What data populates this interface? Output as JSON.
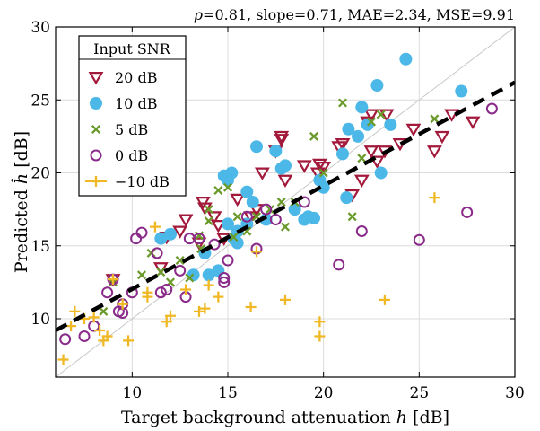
{
  "chart_data": {
    "type": "scatter",
    "title_parts": {
      "rho_symbol": "ρ",
      "rest": "=0.81, slope=0.71, MAE=2.34, MSE=9.91"
    },
    "xlabel": {
      "text": "Target background attenuation ",
      "var": "h",
      "unit": " [dB]"
    },
    "ylabel": {
      "text": "Predicted ",
      "var": "ĥ",
      "unit": " [dB]"
    },
    "xlim": [
      6,
      30
    ],
    "ylim": [
      6,
      30
    ],
    "xticks": [
      10,
      15,
      20,
      25,
      30
    ],
    "yticks": [
      10,
      15,
      20,
      25,
      30
    ],
    "grid": true,
    "legend": {
      "title": "Input SNR",
      "placement": "top-left"
    },
    "identity_line": {
      "from": [
        6,
        6
      ],
      "to": [
        30,
        30
      ],
      "color": "#c8c8c8"
    },
    "fit_line": {
      "from": [
        6,
        9.2
      ],
      "to": [
        30,
        26.2
      ],
      "color": "#000000",
      "style": "dashed"
    },
    "series": [
      {
        "name": "20 dB",
        "marker": "triangle-down",
        "color": "#a3193b",
        "points": [
          [
            9.0,
            12.7
          ],
          [
            11.5,
            13.5
          ],
          [
            11.8,
            15.6
          ],
          [
            12.5,
            16.0
          ],
          [
            12.8,
            16.8
          ],
          [
            13.5,
            15.2
          ],
          [
            13.7,
            18.0
          ],
          [
            13.8,
            17.6
          ],
          [
            14.3,
            17.0
          ],
          [
            14.5,
            16.4
          ],
          [
            14.8,
            15.5
          ],
          [
            15.5,
            16.0
          ],
          [
            15.5,
            18.2
          ],
          [
            16.2,
            17.0
          ],
          [
            16.5,
            17.5
          ],
          [
            16.8,
            20.0
          ],
          [
            17.5,
            21.5
          ],
          [
            17.8,
            22.5
          ],
          [
            18.0,
            19.5
          ],
          [
            19.0,
            20.5
          ],
          [
            19.8,
            20.6
          ],
          [
            20.0,
            20.4
          ],
          [
            20.8,
            21.8
          ],
          [
            21.0,
            22.0
          ],
          [
            21.5,
            18.5
          ],
          [
            22.0,
            19.5
          ],
          [
            22.3,
            23.5
          ],
          [
            22.5,
            24.0
          ],
          [
            22.5,
            21.5
          ],
          [
            23.3,
            24.0
          ],
          [
            23.2,
            21.5
          ],
          [
            24.0,
            22.0
          ],
          [
            24.7,
            23.0
          ],
          [
            25.8,
            21.5
          ],
          [
            26.2,
            22.5
          ],
          [
            26.7,
            24.0
          ],
          [
            27.8,
            23.5
          ],
          [
            19.7,
            20.0
          ],
          [
            17.8,
            22.3
          ],
          [
            22.8,
            20.8
          ]
        ]
      },
      {
        "name": "10 dB",
        "marker": "circle-filled",
        "color": "#4cb8e8",
        "points": [
          [
            11.5,
            15.5
          ],
          [
            12.0,
            15.8
          ],
          [
            13.2,
            13.0
          ],
          [
            13.8,
            14.5
          ],
          [
            14.0,
            13.0
          ],
          [
            14.5,
            13.3
          ],
          [
            14.8,
            19.8
          ],
          [
            15.0,
            16.5
          ],
          [
            15.0,
            19.5
          ],
          [
            15.2,
            20.0
          ],
          [
            15.3,
            15.5
          ],
          [
            15.5,
            15.2
          ],
          [
            15.5,
            16.0
          ],
          [
            16.0,
            16.5
          ],
          [
            16.0,
            18.7
          ],
          [
            16.3,
            18.0
          ],
          [
            16.5,
            21.8
          ],
          [
            17.0,
            16.8
          ],
          [
            17.5,
            21.5
          ],
          [
            17.8,
            20.3
          ],
          [
            18.0,
            20.5
          ],
          [
            18.5,
            17.5
          ],
          [
            19.0,
            16.8
          ],
          [
            19.5,
            16.9
          ],
          [
            19.8,
            19.5
          ],
          [
            20.0,
            19.0
          ],
          [
            21.0,
            21.3
          ],
          [
            21.2,
            18.3
          ],
          [
            21.3,
            23.0
          ],
          [
            21.8,
            22.5
          ],
          [
            22.0,
            24.5
          ],
          [
            22.3,
            23.3
          ],
          [
            22.8,
            26.0
          ],
          [
            23.0,
            20.0
          ],
          [
            23.5,
            23.3
          ],
          [
            24.3,
            27.8
          ],
          [
            27.2,
            25.6
          ],
          [
            19.2,
            17.0
          ]
        ]
      },
      {
        "name": "5 dB",
        "marker": "x-cross",
        "color": "#6a9a2a",
        "points": [
          [
            8.5,
            10.5
          ],
          [
            9.0,
            12.5
          ],
          [
            10.5,
            13.0
          ],
          [
            11.0,
            14.5
          ],
          [
            11.5,
            13.2
          ],
          [
            12.0,
            12.5
          ],
          [
            12.5,
            14.0
          ],
          [
            13.0,
            12.8
          ],
          [
            13.5,
            15.7
          ],
          [
            14.0,
            16.7
          ],
          [
            14.5,
            18.8
          ],
          [
            15.0,
            19.0
          ],
          [
            15.5,
            17.0
          ],
          [
            16.0,
            16.0
          ],
          [
            16.5,
            17.0
          ],
          [
            17.2,
            17.5
          ],
          [
            17.8,
            18.0
          ],
          [
            18.0,
            16.3
          ],
          [
            18.5,
            18.0
          ],
          [
            19.5,
            22.5
          ],
          [
            20.0,
            20.0
          ],
          [
            21.0,
            24.8
          ],
          [
            21.5,
            17.0
          ],
          [
            22.0,
            21.0
          ],
          [
            22.5,
            23.5
          ],
          [
            23.0,
            24.0
          ],
          [
            25.8,
            23.7
          ],
          [
            14.0,
            17.5
          ],
          [
            15.3,
            15.6
          ],
          [
            13.6,
            14.8
          ]
        ]
      },
      {
        "name": "0 dB",
        "marker": "circle-open",
        "color": "#8a2b8a",
        "points": [
          [
            6.5,
            8.6
          ],
          [
            7.5,
            8.8
          ],
          [
            8.0,
            9.5
          ],
          [
            8.7,
            11.8
          ],
          [
            9.0,
            12.7
          ],
          [
            9.3,
            10.5
          ],
          [
            9.5,
            11.0
          ],
          [
            10.0,
            11.8
          ],
          [
            10.2,
            15.5
          ],
          [
            10.5,
            15.9
          ],
          [
            11.3,
            14.5
          ],
          [
            11.5,
            11.8
          ],
          [
            11.8,
            12.0
          ],
          [
            12.5,
            13.3
          ],
          [
            12.8,
            11.5
          ],
          [
            13.0,
            15.5
          ],
          [
            13.5,
            15.5
          ],
          [
            14.3,
            15.1
          ],
          [
            14.8,
            12.8
          ],
          [
            15.0,
            14.0
          ],
          [
            16.0,
            17.0
          ],
          [
            16.5,
            14.8
          ],
          [
            17.0,
            17.5
          ],
          [
            17.5,
            16.8
          ],
          [
            19.0,
            18.0
          ],
          [
            20.8,
            13.7
          ],
          [
            22.0,
            16.0
          ],
          [
            25.0,
            15.4
          ],
          [
            27.5,
            17.3
          ],
          [
            28.8,
            24.4
          ],
          [
            14.8,
            12.5
          ],
          [
            9.5,
            10.4
          ]
        ]
      },
      {
        "name": "−10 dB",
        "marker": "plus",
        "color": "#f0b824",
        "points": [
          [
            6.4,
            7.2
          ],
          [
            6.8,
            9.5
          ],
          [
            7.0,
            10.5
          ],
          [
            7.5,
            10.0
          ],
          [
            8.0,
            10.1
          ],
          [
            8.3,
            9.2
          ],
          [
            8.5,
            8.5
          ],
          [
            8.7,
            8.8
          ],
          [
            9.0,
            12.7
          ],
          [
            9.5,
            11.0
          ],
          [
            9.8,
            8.5
          ],
          [
            10.8,
            11.5
          ],
          [
            11.2,
            16.3
          ],
          [
            11.8,
            9.8
          ],
          [
            12.0,
            10.2
          ],
          [
            12.8,
            12.0
          ],
          [
            13.5,
            10.5
          ],
          [
            13.8,
            10.7
          ],
          [
            14.0,
            12.3
          ],
          [
            14.5,
            11.5
          ],
          [
            16.2,
            10.8
          ],
          [
            16.5,
            14.6
          ],
          [
            18.0,
            11.3
          ],
          [
            19.8,
            9.8
          ],
          [
            19.8,
            8.8
          ],
          [
            23.2,
            11.3
          ],
          [
            25.8,
            18.3
          ],
          [
            10.8,
            11.8
          ]
        ]
      }
    ]
  }
}
